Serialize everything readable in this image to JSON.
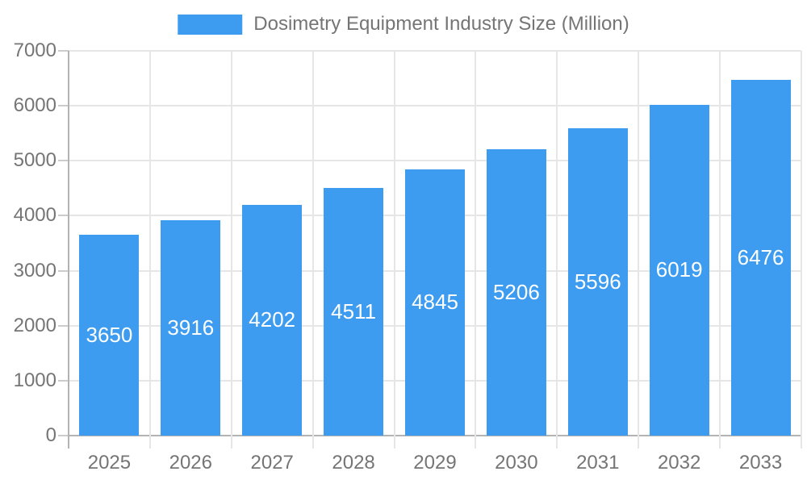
{
  "legend": {
    "label": "Dosimetry Equipment Industry Size (Million)"
  },
  "colors": {
    "bar": "#3D9CF0",
    "bar_label": "#FFFFFF",
    "grid": "#E6E6E6",
    "axis": "#B3B3B3",
    "tick": "#CCCCCC",
    "text": "#757575",
    "background": "#FFFFFF"
  },
  "chart_data": {
    "type": "bar",
    "title": "Dosimetry Equipment Industry Size (Million)",
    "categories": [
      "2025",
      "2026",
      "2027",
      "2028",
      "2029",
      "2030",
      "2031",
      "2032",
      "2033"
    ],
    "series": [
      {
        "name": "Dosimetry Equipment Industry Size (Million)",
        "values": [
          3650,
          3916,
          4202,
          4511,
          4845,
          5206,
          5596,
          6019,
          6476
        ]
      }
    ],
    "xlabel": "",
    "ylabel": "",
    "ylim": [
      0,
      7000
    ],
    "y_ticks": [
      0,
      1000,
      2000,
      3000,
      4000,
      5000,
      6000,
      7000
    ],
    "grid": true,
    "legend_position": "top-center",
    "value_labels": "inside-middle"
  }
}
